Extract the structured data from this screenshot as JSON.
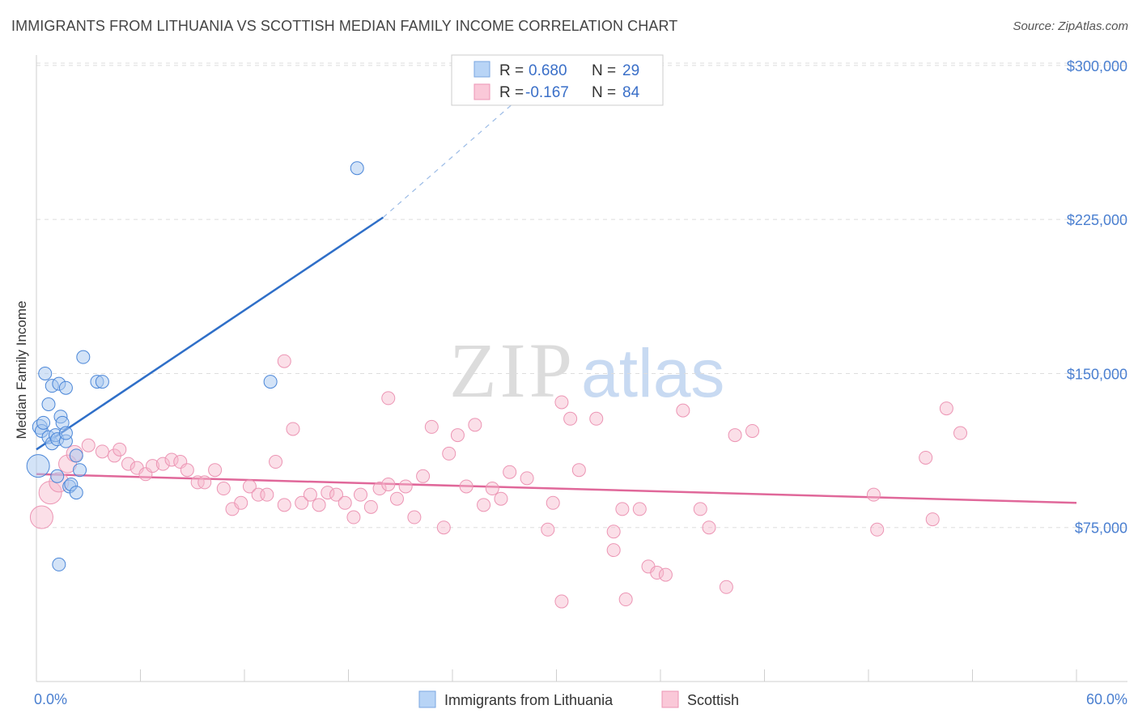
{
  "title": "IMMIGRANTS FROM LITHUANIA VS SCOTTISH MEDIAN FAMILY INCOME CORRELATION CHART",
  "source": "Source: ZipAtlas.com",
  "watermark": {
    "zip": "ZIP",
    "atlas": "atlas"
  },
  "legend": {
    "rows": [
      {
        "r_label": "R =",
        "r_value": "0.680",
        "n_label": "N =",
        "n_value": "29",
        "color": "#a8c8f0"
      },
      {
        "r_label": "R =",
        "r_value": "-0.167",
        "n_label": "N =",
        "n_value": "84",
        "color": "#f7b8cc"
      }
    ]
  },
  "bottom_legend": [
    "Immigrants from Lithuania",
    "Scottish"
  ],
  "chart_data": {
    "type": "scatter",
    "title": "IMMIGRANTS FROM LITHUANIA VS SCOTTISH MEDIAN FAMILY INCOME CORRELATION CHART",
    "xlabel": "",
    "ylabel": "Median Family Income",
    "xlim": [
      0,
      60
    ],
    "ylim": [
      15000,
      310000
    ],
    "x_tick_labels": [
      "0.0%",
      "60.0%"
    ],
    "y_ticks": [
      75000,
      150000,
      225000,
      300000
    ],
    "y_tick_labels": [
      "$75,000",
      "$150,000",
      "$225,000",
      "$300,000"
    ],
    "grid": "horizontal dashed",
    "legend_placement": "top-center",
    "colors": {
      "lithuania": "#4a86d8",
      "scottish": "#e87aa0",
      "lithuania_line": "#2f6fc8",
      "scottish_line": "#e0689a"
    },
    "series": [
      {
        "name": "Immigrants from Lithuania",
        "points": [
          [
            0.1,
            105000,
            14
          ],
          [
            0.2,
            124000,
            9
          ],
          [
            0.3,
            122000,
            8
          ],
          [
            0.4,
            126000,
            8
          ],
          [
            0.5,
            150000,
            8
          ],
          [
            0.7,
            135000,
            8
          ],
          [
            0.7,
            119000,
            8
          ],
          [
            0.9,
            144000,
            8
          ],
          [
            0.9,
            116000,
            8
          ],
          [
            1.1,
            120000,
            8
          ],
          [
            1.2,
            118000,
            8
          ],
          [
            1.3,
            145000,
            8
          ],
          [
            1.4,
            129000,
            8
          ],
          [
            1.5,
            126000,
            8
          ],
          [
            1.7,
            117000,
            8
          ],
          [
            1.7,
            121000,
            8
          ],
          [
            1.7,
            143000,
            8
          ],
          [
            1.9,
            95000,
            8
          ],
          [
            2.0,
            96000,
            8
          ],
          [
            2.3,
            92000,
            8
          ],
          [
            2.3,
            110000,
            8
          ],
          [
            2.5,
            103000,
            8
          ],
          [
            2.7,
            158000,
            8
          ],
          [
            3.5,
            146000,
            8
          ],
          [
            3.8,
            146000,
            8
          ],
          [
            13.5,
            146000,
            8
          ],
          [
            18.5,
            250000,
            8
          ],
          [
            1.3,
            57000,
            8
          ],
          [
            1.2,
            100000,
            8
          ]
        ],
        "trend": {
          "x": [
            0,
            20
          ],
          "y": [
            113000,
            226000
          ],
          "dashed_to": [
            30,
            300000
          ]
        }
      },
      {
        "name": "Scottish",
        "points": [
          [
            0.3,
            80000,
            14
          ],
          [
            0.8,
            92000,
            14
          ],
          [
            1.3,
            97000,
            12
          ],
          [
            1.8,
            106000,
            11
          ],
          [
            2.2,
            111000,
            10
          ],
          [
            3.0,
            115000,
            8
          ],
          [
            3.8,
            112000,
            8
          ],
          [
            4.5,
            110000,
            8
          ],
          [
            4.8,
            113000,
            8
          ],
          [
            5.3,
            106000,
            8
          ],
          [
            5.8,
            104000,
            8
          ],
          [
            6.3,
            101000,
            8
          ],
          [
            6.7,
            105000,
            8
          ],
          [
            7.3,
            106000,
            8
          ],
          [
            7.8,
            108000,
            8
          ],
          [
            8.3,
            107000,
            8
          ],
          [
            8.7,
            103000,
            8
          ],
          [
            9.3,
            97000,
            8
          ],
          [
            9.7,
            97000,
            8
          ],
          [
            10.3,
            103000,
            8
          ],
          [
            10.8,
            94000,
            8
          ],
          [
            11.3,
            84000,
            8
          ],
          [
            11.8,
            87000,
            8
          ],
          [
            12.3,
            95000,
            8
          ],
          [
            12.8,
            91000,
            8
          ],
          [
            13.3,
            91000,
            8
          ],
          [
            13.8,
            107000,
            8
          ],
          [
            14.3,
            86000,
            8
          ],
          [
            14.8,
            123000,
            8
          ],
          [
            15.3,
            87000,
            8
          ],
          [
            15.8,
            91000,
            8
          ],
          [
            16.3,
            86000,
            8
          ],
          [
            16.8,
            92000,
            8
          ],
          [
            17.3,
            91000,
            8
          ],
          [
            17.8,
            87000,
            8
          ],
          [
            18.3,
            80000,
            8
          ],
          [
            18.7,
            91000,
            8
          ],
          [
            19.3,
            85000,
            8
          ],
          [
            19.8,
            94000,
            8
          ],
          [
            20.3,
            96000,
            8
          ],
          [
            20.8,
            89000,
            8
          ],
          [
            21.3,
            95000,
            8
          ],
          [
            21.8,
            80000,
            8
          ],
          [
            22.3,
            100000,
            8
          ],
          [
            22.8,
            124000,
            8
          ],
          [
            23.5,
            75000,
            8
          ],
          [
            23.8,
            111000,
            8
          ],
          [
            24.3,
            120000,
            8
          ],
          [
            24.8,
            95000,
            8
          ],
          [
            25.3,
            125000,
            8
          ],
          [
            25.8,
            86000,
            8
          ],
          [
            26.3,
            94000,
            8
          ],
          [
            26.8,
            89000,
            8
          ],
          [
            27.3,
            102000,
            8
          ],
          [
            28.3,
            99000,
            8
          ],
          [
            29.5,
            74000,
            8
          ],
          [
            29.8,
            87000,
            8
          ],
          [
            30.3,
            136000,
            8
          ],
          [
            30.8,
            128000,
            8
          ],
          [
            31.3,
            103000,
            8
          ],
          [
            32.3,
            128000,
            8
          ],
          [
            33.3,
            73000,
            8
          ],
          [
            33.8,
            84000,
            8
          ],
          [
            34.8,
            84000,
            8
          ],
          [
            35.3,
            56000,
            8
          ],
          [
            35.8,
            53000,
            8
          ],
          [
            36.3,
            52000,
            8
          ],
          [
            37.3,
            132000,
            8
          ],
          [
            38.3,
            84000,
            8
          ],
          [
            38.8,
            75000,
            8
          ],
          [
            39.8,
            46000,
            8
          ],
          [
            40.3,
            120000,
            8
          ],
          [
            41.3,
            122000,
            8
          ],
          [
            48.3,
            91000,
            8
          ],
          [
            48.5,
            74000,
            8
          ],
          [
            51.3,
            109000,
            8
          ],
          [
            51.7,
            79000,
            8
          ],
          [
            52.5,
            133000,
            8
          ],
          [
            53.3,
            121000,
            8
          ],
          [
            14.3,
            156000,
            8
          ],
          [
            20.3,
            138000,
            8
          ],
          [
            33.3,
            64000,
            8
          ],
          [
            34.0,
            40000,
            8
          ],
          [
            30.3,
            39000,
            8
          ]
        ],
        "trend": {
          "x": [
            0,
            60
          ],
          "y": [
            101000,
            87000
          ]
        }
      }
    ]
  }
}
